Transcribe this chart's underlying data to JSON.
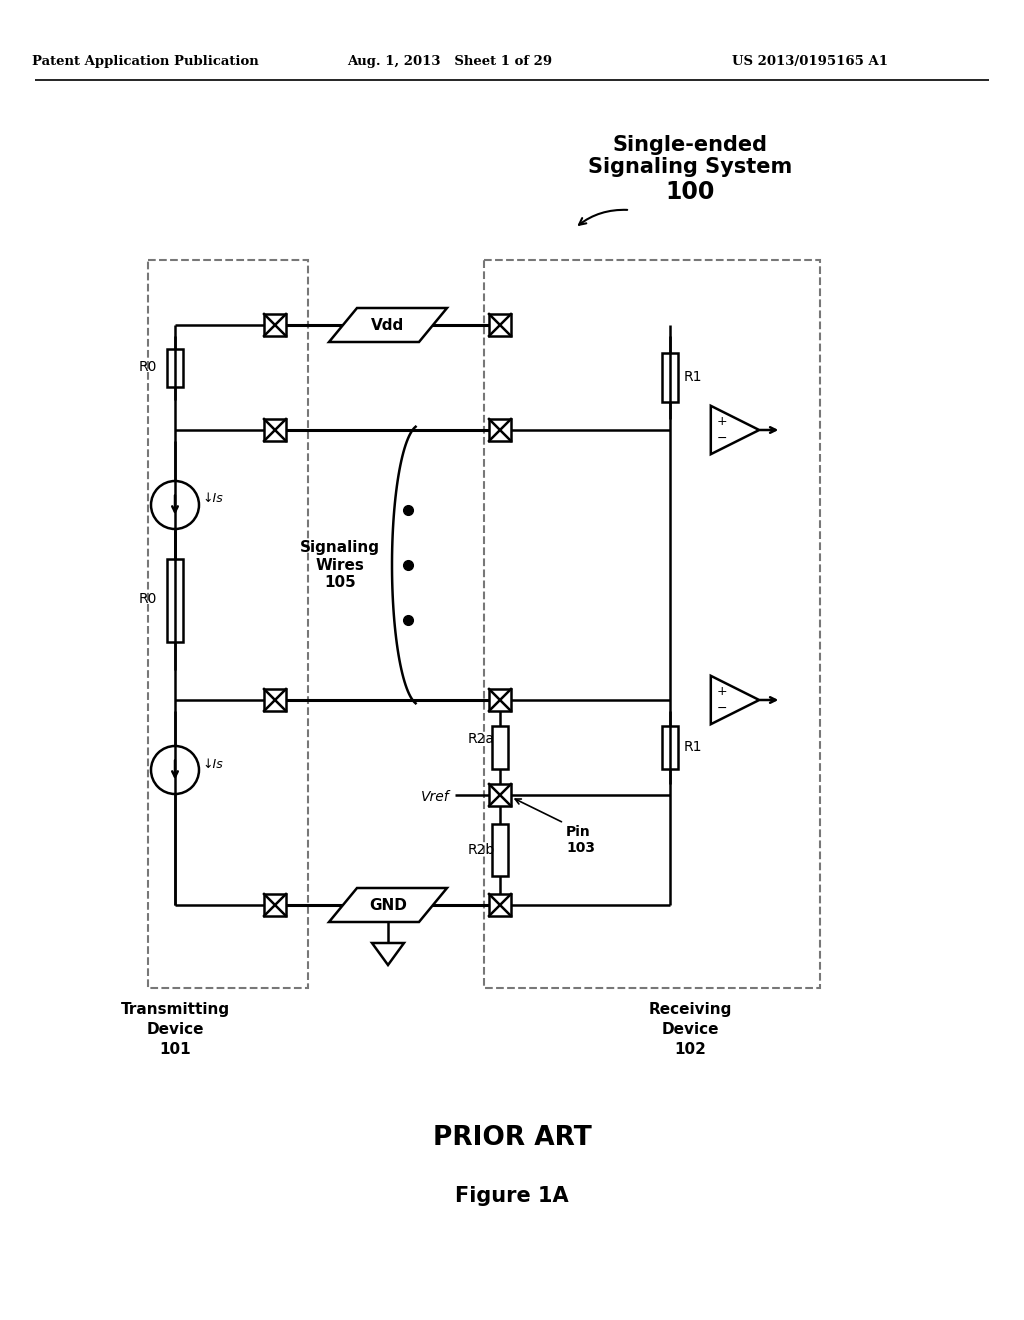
{
  "header_left": "Patent Application Publication",
  "header_mid": "Aug. 1, 2013   Sheet 1 of 29",
  "header_right": "US 2013/0195165 A1",
  "title_line1": "Single-ended",
  "title_line2": "Signaling System",
  "title_line3": "100",
  "footer_prior_art": "PRIOR ART",
  "footer_figure": "Figure 1A",
  "label_tx": "Transmitting\nDevice\n101",
  "label_rx": "Receiving\nDevice\n102",
  "label_signaling": "Signaling\nWires\n105",
  "label_vdd": "Vdd",
  "label_gnd": "GND",
  "label_vref": "Vref",
  "label_pin": "Pin\n103",
  "label_r0": "R0",
  "label_r1": "R1",
  "label_r2a": "R2a",
  "label_r2b": "R2b",
  "label_is": "Is",
  "bg_color": "#ffffff",
  "line_color": "#000000",
  "dashed_color": "#777777"
}
